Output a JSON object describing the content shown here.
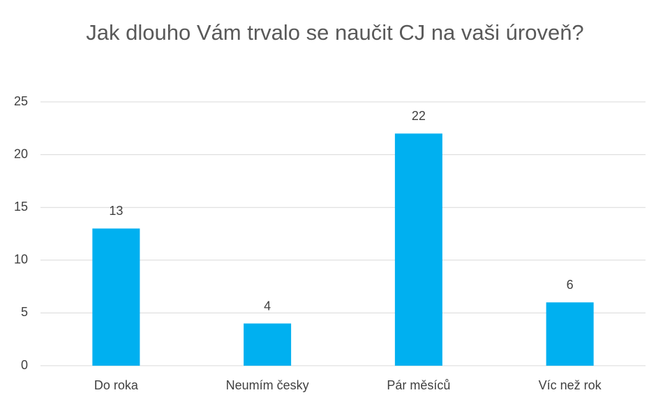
{
  "chart_data": {
    "type": "bar",
    "title": "Jak dlouho Vám trvalo se naučit CJ na vaši úroveň?",
    "categories": [
      "Do roka",
      "Neumím česky",
      "Pár měsíců",
      "Víc než rok"
    ],
    "values": [
      13,
      4,
      22,
      6
    ],
    "color": "#00b0f0",
    "ylim": [
      0,
      25
    ],
    "yticks": [
      0,
      5,
      10,
      15,
      20,
      25
    ],
    "grid": true
  }
}
